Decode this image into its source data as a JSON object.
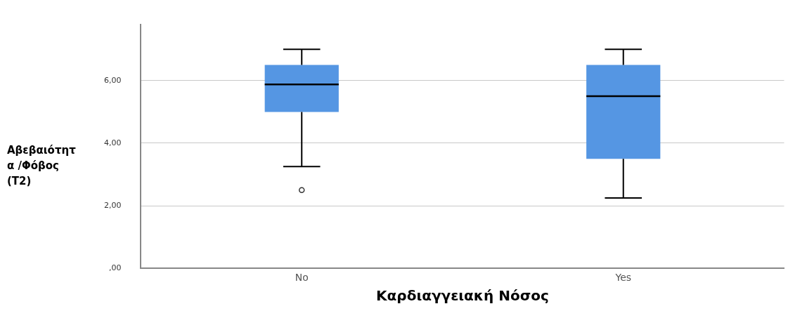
{
  "chart_data": {
    "type": "box",
    "xlabel": "Καρδιαγγειακή Νόσος",
    "ylabel": "Αβεβαιότητα /Φόβος (T2)",
    "categories": [
      "No",
      "Yes"
    ],
    "color": "#5596e3",
    "boxes": [
      {
        "low": 3.25,
        "q1": 5.0,
        "median": 5.88,
        "q3": 6.5,
        "high": 7.0,
        "outliers": [
          2.5
        ]
      },
      {
        "low": 2.25,
        "q1": 3.5,
        "median": 5.5,
        "q3": 6.5,
        "high": 7.0
      }
    ],
    "ylim": [
      0,
      7.8
    ],
    "yticks": [
      {
        "value": 0,
        "label": ",00"
      },
      {
        "value": 2,
        "label": "2,00"
      },
      {
        "value": 4,
        "label": "4,00"
      },
      {
        "value": 6,
        "label": "6,00"
      }
    ],
    "grid": "y",
    "legend": false
  }
}
